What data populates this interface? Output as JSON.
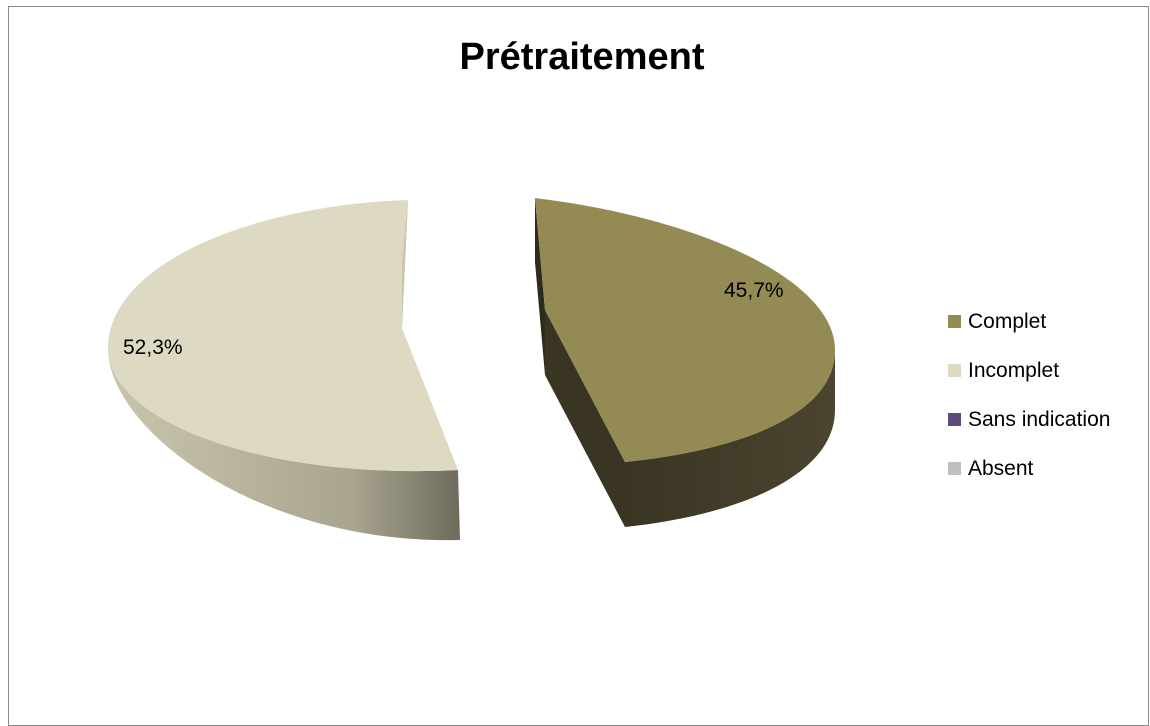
{
  "chart_data": {
    "type": "pie",
    "title": "Prétraitement",
    "categories": [
      "Complet",
      "Incomplet",
      "Sans indication",
      "Absent"
    ],
    "values": [
      45.7,
      52.3,
      0,
      0
    ],
    "labels": [
      "45,7%",
      "52,3%",
      "",
      ""
    ],
    "colors": [
      "#948a54",
      "#ddd9c3",
      "#604a7b",
      "#bfbfbf"
    ],
    "legend_position": "right",
    "style": "3d-exploded"
  }
}
